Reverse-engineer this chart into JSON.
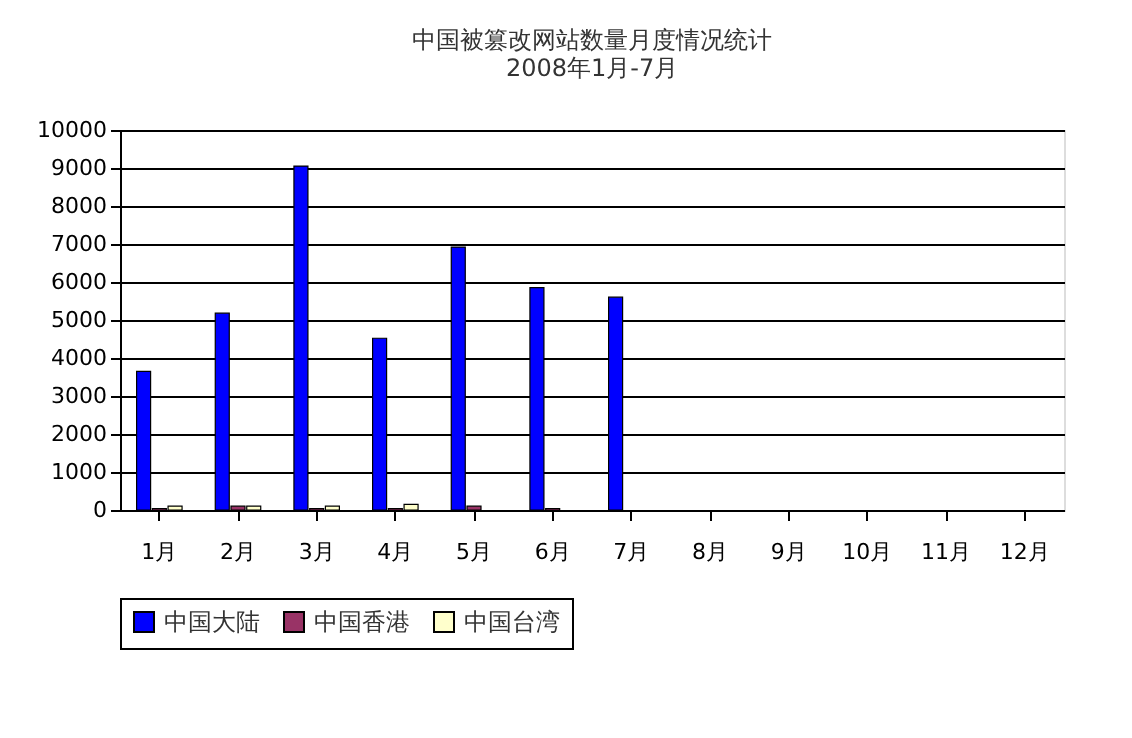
{
  "chart_data": {
    "type": "bar",
    "title": [
      "中国被篡改网站数量月度情况统计",
      "2008年1月-7月"
    ],
    "categories": [
      "1月",
      "2月",
      "3月",
      "4月",
      "5月",
      "6月",
      "7月",
      "8月",
      "9月",
      "10月",
      "11月",
      "12月"
    ],
    "series": [
      {
        "name": "中国大陆",
        "color": "#0000ff",
        "values": [
          3650,
          5180,
          9050,
          4520,
          6920,
          5850,
          5600,
          null,
          null,
          null,
          null,
          null
        ]
      },
      {
        "name": "中国香港",
        "color": "#993366",
        "values": [
          40,
          100,
          40,
          40,
          100,
          40,
          null,
          null,
          null,
          null,
          null,
          null
        ]
      },
      {
        "name": "中国台湾",
        "color": "#ffffcc",
        "values": [
          100,
          100,
          100,
          150,
          null,
          null,
          null,
          null,
          null,
          null,
          null,
          null
        ]
      }
    ],
    "ylim": [
      0,
      10000
    ],
    "yticks": [
      0,
      1000,
      2000,
      3000,
      4000,
      5000,
      6000,
      7000,
      8000,
      9000,
      10000
    ],
    "grid": "y",
    "legend": "bottom"
  }
}
